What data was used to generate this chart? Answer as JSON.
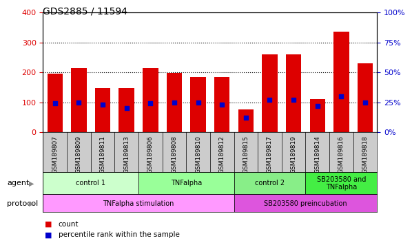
{
  "title": "GDS2885 / 11594",
  "samples": [
    "GSM189807",
    "GSM189809",
    "GSM189811",
    "GSM189813",
    "GSM189806",
    "GSM189808",
    "GSM189810",
    "GSM189812",
    "GSM189815",
    "GSM189817",
    "GSM189819",
    "GSM189814",
    "GSM189816",
    "GSM189818"
  ],
  "counts": [
    195,
    215,
    147,
    148,
    215,
    197,
    185,
    183,
    75,
    260,
    260,
    110,
    335,
    230
  ],
  "percentile_ranks": [
    24,
    25,
    23,
    20,
    24,
    25,
    25,
    23,
    12,
    27,
    27,
    22,
    30,
    25
  ],
  "ylim_left": [
    0,
    400
  ],
  "ylim_right": [
    0,
    100
  ],
  "yticks_left": [
    0,
    100,
    200,
    300,
    400
  ],
  "yticks_right": [
    0,
    25,
    50,
    75,
    100
  ],
  "bar_color": "#dd0000",
  "dot_color": "#0000cc",
  "agent_groups": [
    {
      "label": "control 1",
      "start": 0,
      "end": 4,
      "color": "#ccffcc"
    },
    {
      "label": "TNFalpha",
      "start": 4,
      "end": 8,
      "color": "#99ff99"
    },
    {
      "label": "control 2",
      "start": 8,
      "end": 11,
      "color": "#88ee88"
    },
    {
      "label": "SB203580 and\nTNFalpha",
      "start": 11,
      "end": 14,
      "color": "#44ee44"
    }
  ],
  "protocol_groups": [
    {
      "label": "TNFalpha stimulation",
      "start": 0,
      "end": 8,
      "color": "#ff88ff"
    },
    {
      "label": "SB203580 preincubation",
      "start": 8,
      "end": 14,
      "color": "#cc44cc"
    }
  ],
  "bg_color": "#ffffff",
  "tick_label_color_left": "#dd0000",
  "tick_label_color_right": "#0000cc",
  "sample_bg_color": "#cccccc",
  "left_label_color": "#555555"
}
